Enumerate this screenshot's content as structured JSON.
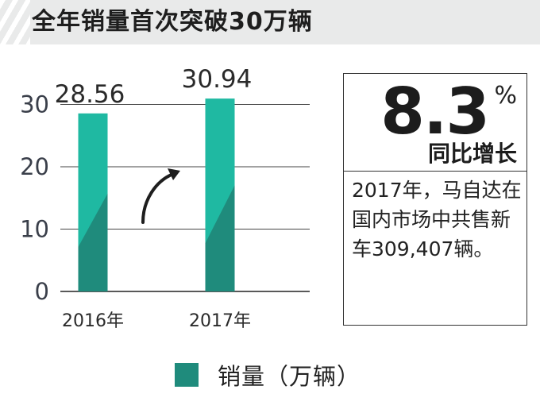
{
  "header": {
    "title": "全年销量首次突破30万辆"
  },
  "chart_data": {
    "type": "bar",
    "categories": [
      "2016年",
      "2017年"
    ],
    "series": [
      {
        "name": "销量（万辆）",
        "values": [
          28.56,
          30.94
        ]
      }
    ],
    "data_labels": [
      "28.56",
      "30.94"
    ],
    "yticks": [
      "0",
      "10",
      "20",
      "30"
    ],
    "ylim": [
      0,
      33
    ],
    "grid": true,
    "legend_position": "bottom-center",
    "colors": {
      "bar_light": "#1fb9a2",
      "bar_dark": "#1f8b7c"
    }
  },
  "info": {
    "percent": "8.3",
    "percent_sign": "%",
    "growth_label": "同比增长",
    "text": "2017年，马自达在国内市场中共售新车309,407辆。"
  },
  "legend": {
    "label": "销量（万辆）"
  }
}
